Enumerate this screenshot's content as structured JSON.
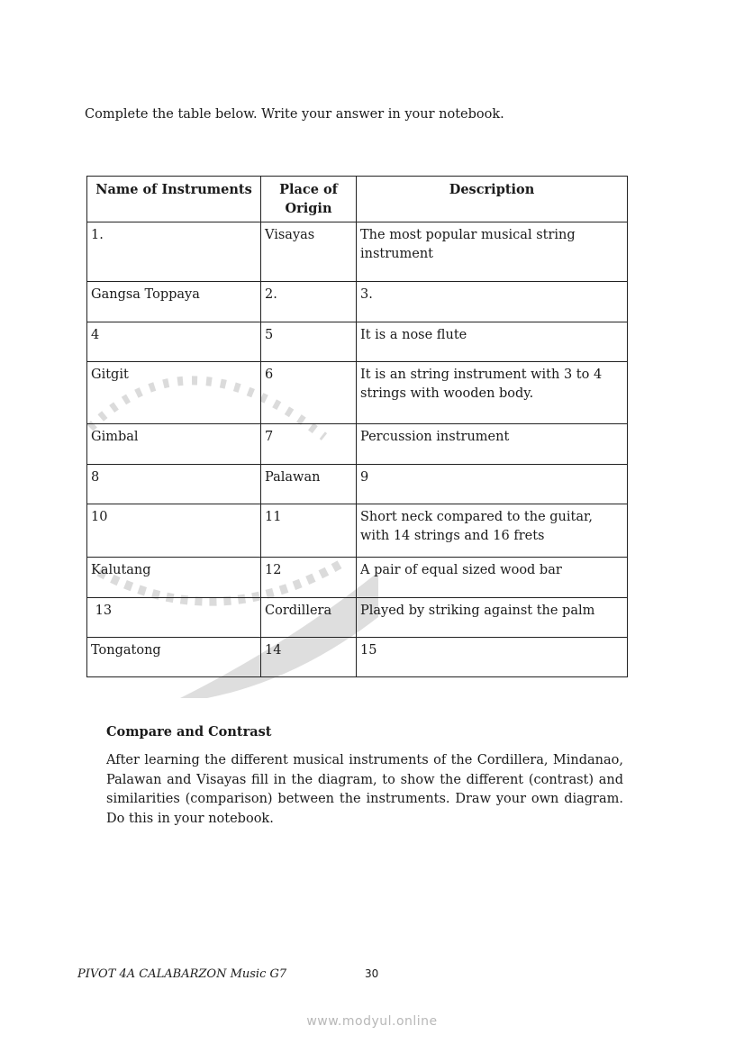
{
  "instruction": "Complete the table below. Write your answer in your notebook.",
  "table": {
    "headers": [
      "Name of Instruments",
      "Place of Origin",
      "Description"
    ],
    "rows": [
      [
        "1.",
        "Visayas",
        "The most popular musical string instrument"
      ],
      [
        "Gangsa Toppaya",
        "2.",
        "3."
      ],
      [
        "4",
        "5",
        "It is a nose flute"
      ],
      [
        "Gitgit",
        "6",
        "It is an string instrument with 3 to 4 strings with wooden body."
      ],
      [
        "Gimbal",
        "7",
        "Percussion instrument"
      ],
      [
        "8",
        "Palawan",
        "9"
      ],
      [
        "10",
        "11",
        "Short neck compared to the guitar, with 14 strings and 16 frets"
      ],
      [
        "Kalutang",
        "12",
        "A pair of equal sized wood bar"
      ],
      [
        " 13",
        "Cordillera",
        "Played by striking against the palm"
      ],
      [
        "Tongatong",
        "14",
        "15"
      ]
    ]
  },
  "compare": {
    "title": "Compare and Contrast",
    "body": "After learning the different musical instruments of the Cordillera, Mindanao, Palawan and Visayas fill in the diagram, to show the different (contrast) and similarities (comparison) between the instruments. Draw your own diagram. Do this in your notebook."
  },
  "footer": {
    "left": "PIVOT 4A CALABARZON Music G7",
    "page": "30"
  },
  "watermark": "www.modyul.online"
}
